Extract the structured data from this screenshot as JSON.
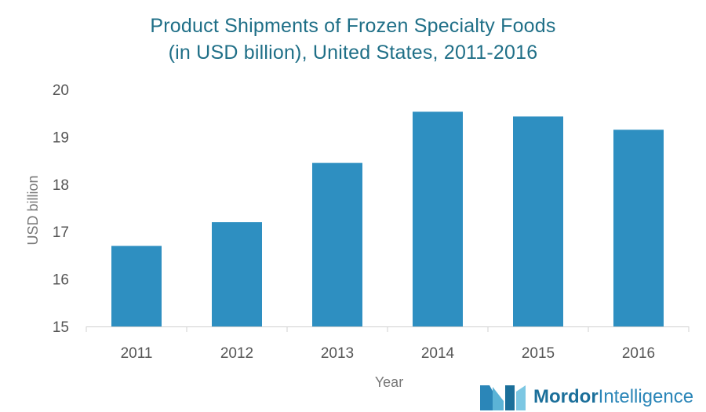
{
  "title": {
    "line1": "Product Shipments of Frozen Specialty Foods",
    "line2": "(in USD billion), United States, 2011-2016"
  },
  "chart_data": {
    "type": "bar",
    "categories": [
      "2011",
      "2012",
      "2013",
      "2014",
      "2015",
      "2016"
    ],
    "values": [
      16.7,
      17.2,
      18.45,
      19.53,
      19.43,
      19.15
    ],
    "xlabel": "Year",
    "ylabel": "USD billion",
    "ylim": [
      15,
      20
    ],
    "yticks": [
      15,
      16,
      17,
      18,
      19,
      20
    ],
    "grid": false,
    "bar_color": "#2e8fc1"
  },
  "branding": {
    "logo_name": "Mordor",
    "logo_suffix": "Intelligence",
    "logo_icon": "mordor-intelligence-logo-icon"
  }
}
